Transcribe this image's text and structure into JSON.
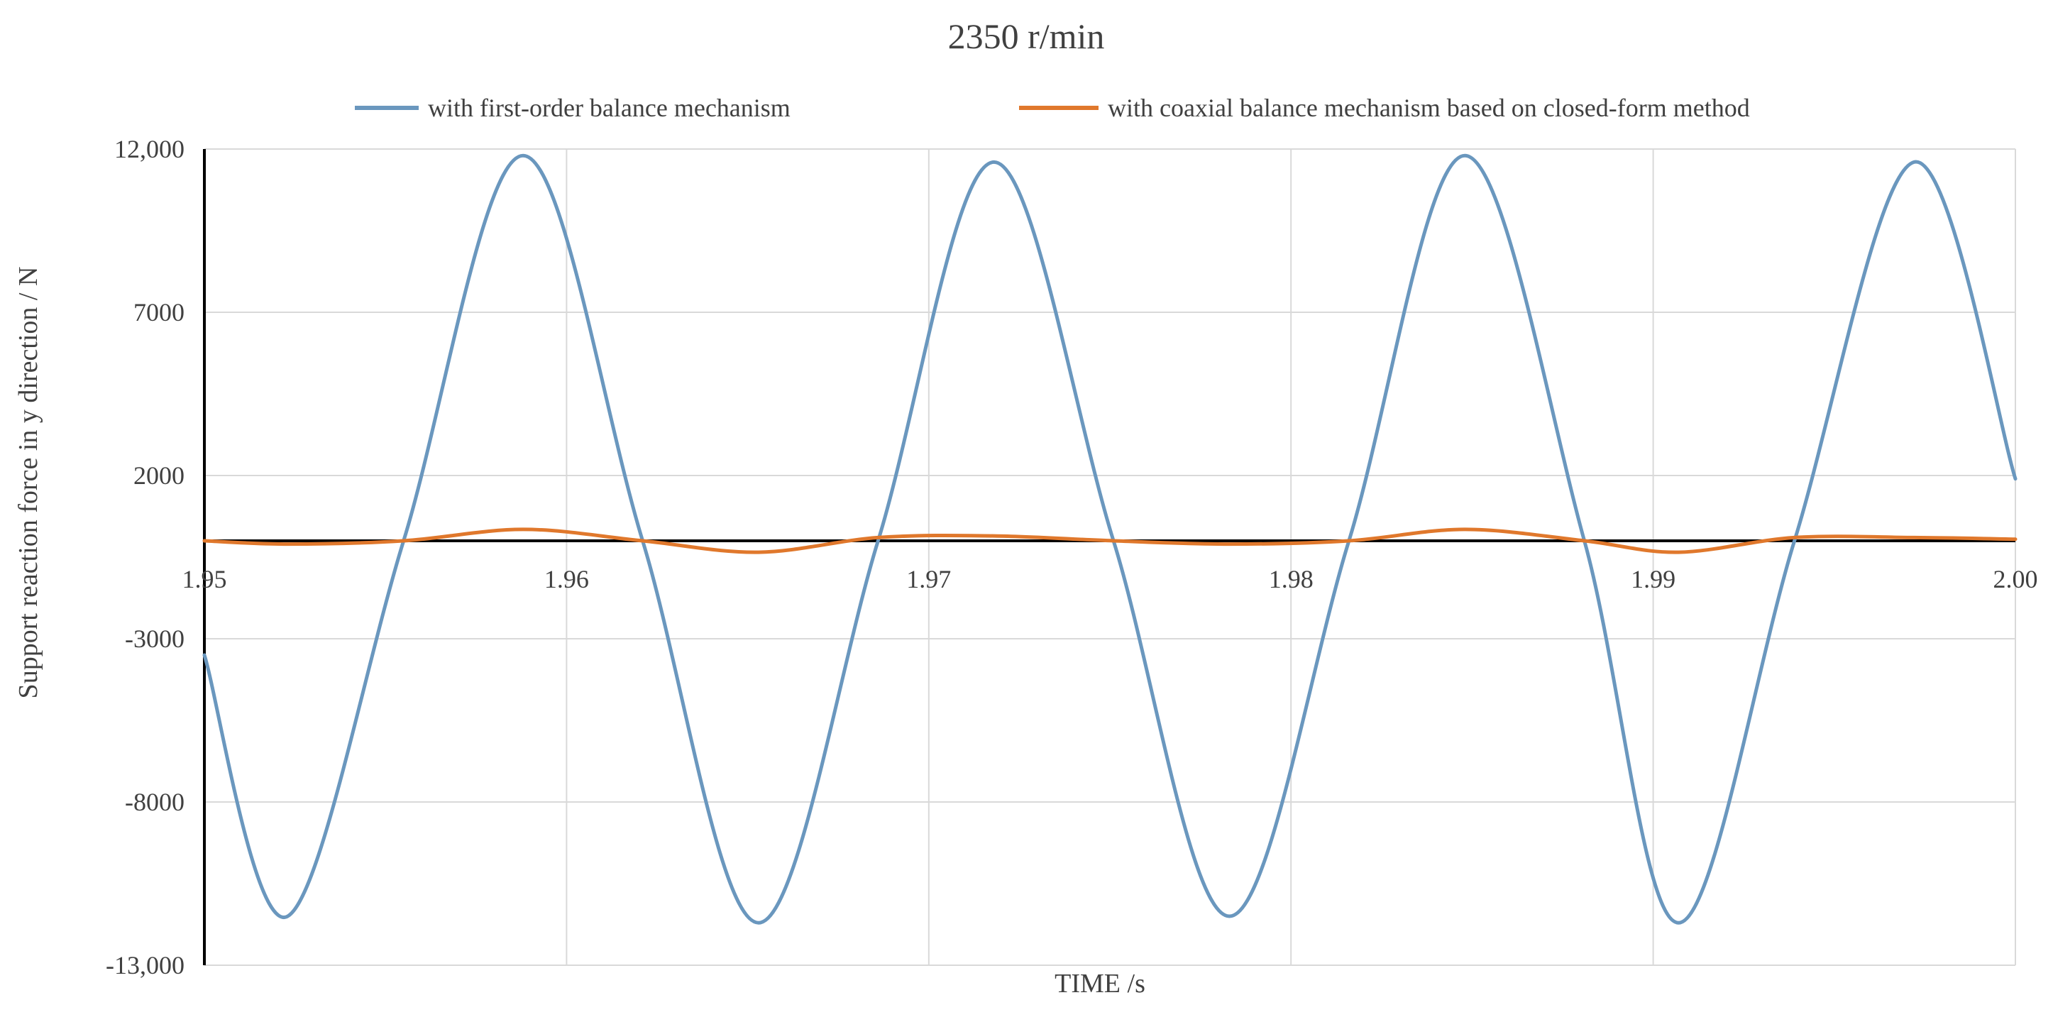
{
  "chart_data": {
    "type": "line",
    "title": "2350 r/min",
    "xlabel": "TIME /s",
    "ylabel": "Support reaction force in y direction / N",
    "xlim": [
      1.95,
      2.0
    ],
    "ylim": [
      -13000,
      12000
    ],
    "x_ticks": [
      "1.95",
      "1.96",
      "1.97",
      "1.98",
      "1.99",
      "2.00"
    ],
    "y_ticks": [
      "12,000",
      "7000",
      "2000",
      "-3000",
      "-8000",
      "-13,000"
    ],
    "y_tick_values": [
      12000,
      7000,
      2000,
      -3000,
      -8000,
      -13000
    ],
    "x_tick_values": [
      1.95,
      1.96,
      1.97,
      1.98,
      1.99,
      2.0
    ],
    "grid": true,
    "legend_position": "top",
    "x": [
      1.95,
      1.9523,
      1.9555,
      1.9588,
      1.9621,
      1.9653,
      1.9686,
      1.9718,
      1.9751,
      1.9783,
      1.9816,
      1.9848,
      1.9881,
      1.9907,
      1.9939,
      1.9972,
      2.0
    ],
    "series": [
      {
        "name": "with first-order balance mechanism",
        "color": "#6a97be",
        "values": [
          -3500,
          -11500,
          0,
          11800,
          0,
          -11700,
          0,
          11600,
          0,
          -11500,
          0,
          11800,
          0,
          -11700,
          0,
          11600,
          1900
        ]
      },
      {
        "name": "with coaxial balance mechanism based on closed-form method",
        "color": "#e0782c",
        "values": [
          0,
          -100,
          0,
          350,
          0,
          -350,
          100,
          150,
          0,
          -100,
          0,
          350,
          0,
          -350,
          100,
          100,
          50
        ]
      }
    ]
  }
}
